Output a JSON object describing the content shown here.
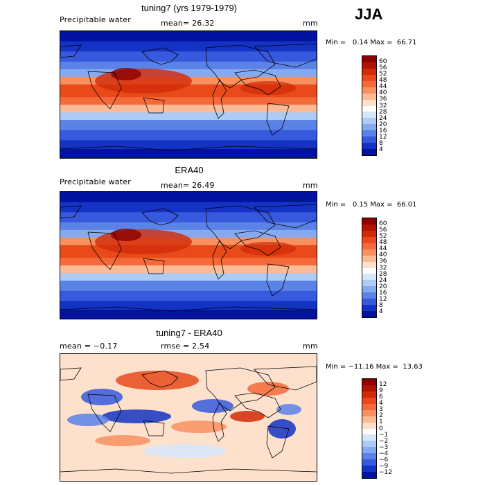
{
  "season": "JJA",
  "panels": [
    {
      "title": "tuning7 (yrs 1979-1979)",
      "variable": "Precipitable water",
      "stat1": "mean=  26.32",
      "stat2": "",
      "units": "mm",
      "minmax": "Min =   0.14 Max =  66.71",
      "colorbar_labels": [
        "60",
        "56",
        "52",
        "48",
        "44",
        "40",
        "36",
        "32",
        "28",
        "24",
        "20",
        "16",
        "12",
        "8",
        "4"
      ],
      "colors": [
        "#8c0000",
        "#b01300",
        "#d22a07",
        "#e84a1a",
        "#f46a3a",
        "#f8915f",
        "#fbbb97",
        "#fde1cd",
        "#fdfdfd",
        "#d6e6fa",
        "#aecbf5",
        "#86aaf0",
        "#5b83e7",
        "#3659dd",
        "#1433c4",
        "#00129e"
      ]
    },
    {
      "title": "ERA40",
      "variable": "Precipitable water",
      "stat1": "mean=  26.49",
      "stat2": "",
      "units": "mm",
      "minmax": "Min =   0.15 Max =  66.01",
      "colorbar_labels": [
        "60",
        "56",
        "52",
        "48",
        "44",
        "40",
        "36",
        "32",
        "28",
        "24",
        "20",
        "16",
        "12",
        "8",
        "4"
      ],
      "colors": [
        "#8c0000",
        "#b01300",
        "#d22a07",
        "#e84a1a",
        "#f46a3a",
        "#f8915f",
        "#fbbb97",
        "#fde1cd",
        "#fdfdfd",
        "#d6e6fa",
        "#aecbf5",
        "#86aaf0",
        "#5b83e7",
        "#3659dd",
        "#1433c4",
        "#00129e"
      ]
    },
    {
      "title": "tuning7 - ERA40",
      "variable": "",
      "stat1": "mean =  −0.17",
      "stat2": "rmse =   2.54",
      "units": "mm",
      "minmax": "Min = −11.16 Max =  13.63",
      "colorbar_labels": [
        "12",
        "9",
        "6",
        "4",
        "3",
        "2",
        "1",
        "0",
        "−1",
        "−2",
        "−3",
        "−4",
        "−6",
        "−9",
        "−12"
      ],
      "colors": [
        "#8c0000",
        "#b01300",
        "#d22a07",
        "#e84a1a",
        "#f46a3a",
        "#f8915f",
        "#fbbb97",
        "#fde1cd",
        "#fdfdfd",
        "#d6e6fa",
        "#aecbf5",
        "#86aaf0",
        "#5b83e7",
        "#3659dd",
        "#1433c4",
        "#00129e"
      ]
    }
  ]
}
